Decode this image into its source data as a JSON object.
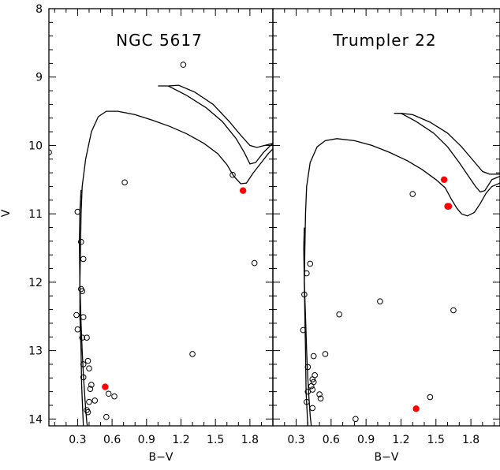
{
  "chart_data": [
    {
      "type": "scatter",
      "title": "NGC 5617",
      "xlabel": "B−V",
      "ylabel": "V",
      "xlim": [
        0.05,
        2.0
      ],
      "ylim": [
        14.1,
        8.0
      ],
      "y_inverted": true,
      "xticks": [
        0.3,
        0.6,
        0.9,
        1.2,
        1.5,
        1.8
      ],
      "xtick_labels": [
        "0.3",
        "0.6",
        "0.9",
        "1.2",
        "1.5",
        "1.8"
      ],
      "yticks": [
        8,
        9,
        10,
        11,
        12,
        13,
        14
      ],
      "ytick_labels": [
        "8",
        "9",
        "10",
        "11",
        "12",
        "13",
        "14"
      ],
      "show_ylabel": true,
      "series": [
        {
          "marker": "open-circle",
          "color": "#000000",
          "points": [
            {
              "x": 1.22,
              "y": 8.82
            },
            {
              "x": 0.05,
              "y": 10.1
            },
            {
              "x": 0.71,
              "y": 10.54
            },
            {
              "x": 1.65,
              "y": 10.43
            },
            {
              "x": 1.84,
              "y": 11.72
            },
            {
              "x": 1.3,
              "y": 13.05
            },
            {
              "x": 0.3,
              "y": 10.97
            },
            {
              "x": 0.33,
              "y": 11.41
            },
            {
              "x": 0.35,
              "y": 11.66
            },
            {
              "x": 0.33,
              "y": 12.1
            },
            {
              "x": 0.34,
              "y": 12.13
            },
            {
              "x": 0.29,
              "y": 12.48
            },
            {
              "x": 0.35,
              "y": 12.51
            },
            {
              "x": 0.3,
              "y": 12.69
            },
            {
              "x": 0.34,
              "y": 12.81
            },
            {
              "x": 0.38,
              "y": 12.81
            },
            {
              "x": 0.39,
              "y": 13.15
            },
            {
              "x": 0.35,
              "y": 13.2
            },
            {
              "x": 0.4,
              "y": 13.26
            },
            {
              "x": 0.35,
              "y": 13.39
            },
            {
              "x": 0.42,
              "y": 13.5
            },
            {
              "x": 0.41,
              "y": 13.56
            },
            {
              "x": 0.57,
              "y": 13.63
            },
            {
              "x": 0.62,
              "y": 13.67
            },
            {
              "x": 0.45,
              "y": 13.73
            },
            {
              "x": 0.4,
              "y": 13.75
            },
            {
              "x": 0.38,
              "y": 13.87
            },
            {
              "x": 0.39,
              "y": 13.9
            },
            {
              "x": 0.55,
              "y": 13.97
            }
          ]
        },
        {
          "marker": "filled-circle",
          "color": "#ff0000",
          "points": [
            {
              "x": 1.74,
              "y": 10.66
            },
            {
              "x": 0.54,
              "y": 13.53
            }
          ]
        }
      ],
      "isochrone_upper": [
        [
          0.33,
          10.65
        ],
        [
          0.32,
          10.95
        ],
        [
          0.315,
          11.4
        ],
        [
          0.32,
          12.0
        ],
        [
          0.33,
          12.6
        ],
        [
          0.34,
          13.0
        ],
        [
          0.35,
          13.35
        ],
        [
          0.36,
          13.6
        ],
        [
          0.37,
          13.85
        ],
        [
          0.38,
          14.05
        ],
        [
          0.385,
          14.1
        ]
      ],
      "isochrone_lower": [
        [
          0.35,
          14.1
        ],
        [
          0.335,
          13.5
        ],
        [
          0.33,
          13.0
        ],
        [
          0.32,
          12.5
        ],
        [
          0.32,
          12.0
        ],
        [
          0.325,
          11.5
        ],
        [
          0.33,
          11.0
        ],
        [
          0.34,
          10.6
        ],
        [
          0.37,
          10.2
        ],
        [
          0.42,
          9.8
        ],
        [
          0.48,
          9.58
        ],
        [
          0.55,
          9.5
        ],
        [
          0.65,
          9.5
        ],
        [
          0.8,
          9.55
        ],
        [
          0.95,
          9.63
        ],
        [
          1.1,
          9.72
        ],
        [
          1.25,
          9.83
        ],
        [
          1.4,
          9.97
        ],
        [
          1.52,
          10.12
        ],
        [
          1.6,
          10.28
        ],
        [
          1.66,
          10.45
        ],
        [
          1.72,
          10.56
        ],
        [
          1.77,
          10.55
        ],
        [
          1.83,
          10.4
        ],
        [
          1.9,
          10.25
        ],
        [
          1.96,
          10.12
        ],
        [
          2.0,
          10.05
        ]
      ],
      "giant_branch": [
        [
          1.0,
          9.13
        ],
        [
          1.09,
          9.13
        ],
        [
          1.25,
          9.27
        ],
        [
          1.42,
          9.45
        ],
        [
          1.56,
          9.65
        ],
        [
          1.68,
          9.9
        ],
        [
          1.75,
          10.1
        ],
        [
          1.8,
          10.27
        ],
        [
          1.85,
          10.25
        ],
        [
          1.92,
          10.1
        ],
        [
          1.98,
          10.0
        ],
        [
          2.0,
          9.98
        ]
      ],
      "giant_branch_inner": [
        [
          1.09,
          9.13
        ],
        [
          1.18,
          9.12
        ],
        [
          1.32,
          9.22
        ],
        [
          1.48,
          9.4
        ],
        [
          1.62,
          9.65
        ],
        [
          1.72,
          9.85
        ],
        [
          1.8,
          10.0
        ],
        [
          1.86,
          10.03
        ],
        [
          1.93,
          10.0
        ],
        [
          2.0,
          9.97
        ]
      ]
    },
    {
      "type": "scatter",
      "title": "Trumpler 22",
      "xlabel": "B−V",
      "ylabel": "",
      "xlim": [
        0.1,
        2.05
      ],
      "ylim": [
        14.1,
        8.0
      ],
      "y_inverted": true,
      "xticks": [
        0.3,
        0.6,
        0.9,
        1.2,
        1.5,
        1.8
      ],
      "xtick_labels": [
        "0.3",
        "0.6",
        "0.9",
        "1.2",
        "1.5",
        "1.8"
      ],
      "yticks": [
        8,
        9,
        10,
        11,
        12,
        13,
        14
      ],
      "ytick_labels": [],
      "show_ylabel": false,
      "series": [
        {
          "marker": "open-circle",
          "color": "#000000",
          "points": [
            {
              "x": 1.3,
              "y": 10.71
            },
            {
              "x": 0.42,
              "y": 11.73
            },
            {
              "x": 0.39,
              "y": 11.87
            },
            {
              "x": 0.37,
              "y": 12.18
            },
            {
              "x": 1.02,
              "y": 12.28
            },
            {
              "x": 1.65,
              "y": 12.41
            },
            {
              "x": 0.67,
              "y": 12.47
            },
            {
              "x": 0.36,
              "y": 12.7
            },
            {
              "x": 0.55,
              "y": 13.05
            },
            {
              "x": 0.45,
              "y": 13.08
            },
            {
              "x": 0.4,
              "y": 13.24
            },
            {
              "x": 0.46,
              "y": 13.36
            },
            {
              "x": 0.44,
              "y": 13.42
            },
            {
              "x": 0.45,
              "y": 13.46
            },
            {
              "x": 0.43,
              "y": 13.52
            },
            {
              "x": 0.44,
              "y": 13.57
            },
            {
              "x": 0.4,
              "y": 13.6
            },
            {
              "x": 0.5,
              "y": 13.64
            },
            {
              "x": 1.45,
              "y": 13.68
            },
            {
              "x": 0.51,
              "y": 13.7
            },
            {
              "x": 0.39,
              "y": 13.75
            },
            {
              "x": 0.44,
              "y": 13.84
            },
            {
              "x": 0.81,
              "y": 14.0
            }
          ]
        },
        {
          "marker": "filled-circle",
          "color": "#ff0000",
          "points": [
            {
              "x": 1.57,
              "y": 10.5
            },
            {
              "x": 1.6,
              "y": 10.89
            },
            {
              "x": 1.61,
              "y": 10.89
            },
            {
              "x": 1.33,
              "y": 13.85
            }
          ]
        }
      ],
      "isochrone_upper": [
        [
          0.37,
          11.2
        ],
        [
          0.365,
          11.5
        ],
        [
          0.37,
          12.0
        ],
        [
          0.38,
          12.5
        ],
        [
          0.39,
          13.0
        ],
        [
          0.4,
          13.4
        ],
        [
          0.41,
          13.7
        ],
        [
          0.42,
          13.95
        ],
        [
          0.43,
          14.1
        ]
      ],
      "isochrone_lower": [
        [
          0.4,
          14.1
        ],
        [
          0.385,
          13.6
        ],
        [
          0.38,
          13.0
        ],
        [
          0.375,
          12.5
        ],
        [
          0.37,
          12.0
        ],
        [
          0.375,
          11.5
        ],
        [
          0.38,
          11.0
        ],
        [
          0.39,
          10.6
        ],
        [
          0.42,
          10.25
        ],
        [
          0.48,
          10.02
        ],
        [
          0.55,
          9.93
        ],
        [
          0.65,
          9.9
        ],
        [
          0.8,
          9.93
        ],
        [
          0.95,
          10.0
        ],
        [
          1.1,
          10.1
        ],
        [
          1.25,
          10.22
        ],
        [
          1.38,
          10.35
        ],
        [
          1.5,
          10.5
        ],
        [
          1.58,
          10.62
        ],
        [
          1.63,
          10.78
        ],
        [
          1.68,
          10.92
        ],
        [
          1.72,
          11.0
        ],
        [
          1.77,
          11.03
        ],
        [
          1.83,
          10.98
        ],
        [
          1.88,
          10.85
        ],
        [
          1.93,
          10.7
        ],
        [
          1.98,
          10.6
        ],
        [
          2.05,
          10.55
        ]
      ],
      "giant_branch": [
        [
          1.14,
          9.53
        ],
        [
          1.2,
          9.53
        ],
        [
          1.33,
          9.65
        ],
        [
          1.48,
          9.82
        ],
        [
          1.6,
          10.02
        ],
        [
          1.7,
          10.25
        ],
        [
          1.78,
          10.45
        ],
        [
          1.84,
          10.6
        ],
        [
          1.88,
          10.68
        ],
        [
          1.92,
          10.66
        ],
        [
          1.98,
          10.5
        ],
        [
          2.05,
          10.45
        ]
      ],
      "giant_branch_inner": [
        [
          1.2,
          9.53
        ],
        [
          1.3,
          9.55
        ],
        [
          1.45,
          9.66
        ],
        [
          1.6,
          9.82
        ],
        [
          1.72,
          10.02
        ],
        [
          1.82,
          10.22
        ],
        [
          1.9,
          10.38
        ],
        [
          1.96,
          10.42
        ],
        [
          2.02,
          10.42
        ],
        [
          2.05,
          10.42
        ]
      ]
    }
  ]
}
